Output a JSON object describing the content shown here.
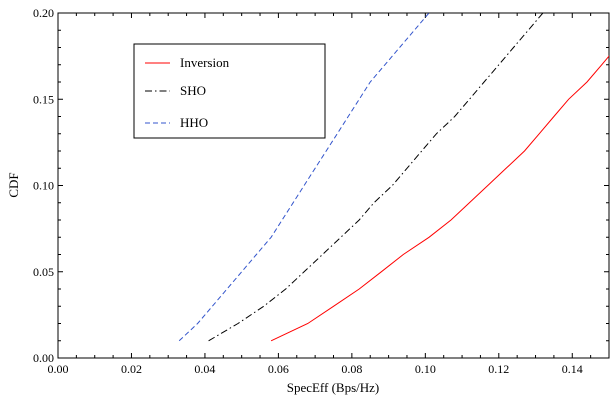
{
  "chart_data": {
    "type": "line",
    "title": "",
    "xlabel": "SpecEff (Bps/Hz)",
    "ylabel": "CDF",
    "xlim": [
      0,
      0.15
    ],
    "ylim": [
      0,
      0.2
    ],
    "xticks": [
      "0.00",
      "0.02",
      "0.04",
      "0.06",
      "0.08",
      "0.10",
      "0.12",
      "0.14"
    ],
    "yticks": [
      "0.00",
      "0.05",
      "0.10",
      "0.15",
      "0.20"
    ],
    "grid": false,
    "legend_position": "top-left",
    "series": [
      {
        "name": "Inversion",
        "color": "#ff0000",
        "dash": "solid",
        "points": [
          [
            0.058,
            0.01
          ],
          [
            0.068,
            0.02
          ],
          [
            0.075,
            0.03
          ],
          [
            0.082,
            0.04
          ],
          [
            0.088,
            0.05
          ],
          [
            0.094,
            0.06
          ],
          [
            0.101,
            0.07
          ],
          [
            0.107,
            0.08
          ],
          [
            0.112,
            0.09
          ],
          [
            0.117,
            0.1
          ],
          [
            0.122,
            0.11
          ],
          [
            0.127,
            0.12
          ],
          [
            0.131,
            0.13
          ],
          [
            0.135,
            0.14
          ],
          [
            0.139,
            0.15
          ],
          [
            0.144,
            0.16
          ],
          [
            0.148,
            0.17
          ],
          [
            0.152,
            0.18
          ],
          [
            0.155,
            0.19
          ]
        ]
      },
      {
        "name": "SHO",
        "color": "#000000",
        "dash": "dashdot",
        "points": [
          [
            0.041,
            0.01
          ],
          [
            0.049,
            0.02
          ],
          [
            0.056,
            0.03
          ],
          [
            0.062,
            0.04
          ],
          [
            0.067,
            0.05
          ],
          [
            0.072,
            0.06
          ],
          [
            0.077,
            0.07
          ],
          [
            0.082,
            0.08
          ],
          [
            0.086,
            0.09
          ],
          [
            0.091,
            0.1
          ],
          [
            0.095,
            0.11
          ],
          [
            0.099,
            0.12
          ],
          [
            0.103,
            0.13
          ],
          [
            0.108,
            0.14
          ],
          [
            0.112,
            0.15
          ],
          [
            0.116,
            0.16
          ],
          [
            0.12,
            0.17
          ],
          [
            0.124,
            0.18
          ],
          [
            0.128,
            0.19
          ],
          [
            0.132,
            0.2
          ]
        ]
      },
      {
        "name": "HHO",
        "color": "#3355cc",
        "dash": "dashed",
        "points": [
          [
            0.033,
            0.01
          ],
          [
            0.038,
            0.02
          ],
          [
            0.042,
            0.03
          ],
          [
            0.046,
            0.04
          ],
          [
            0.05,
            0.05
          ],
          [
            0.054,
            0.06
          ],
          [
            0.058,
            0.07
          ],
          [
            0.061,
            0.08
          ],
          [
            0.064,
            0.09
          ],
          [
            0.067,
            0.1
          ],
          [
            0.07,
            0.11
          ],
          [
            0.073,
            0.12
          ],
          [
            0.076,
            0.13
          ],
          [
            0.079,
            0.14
          ],
          [
            0.082,
            0.15
          ],
          [
            0.085,
            0.16
          ],
          [
            0.089,
            0.17
          ],
          [
            0.093,
            0.18
          ],
          [
            0.097,
            0.19
          ],
          [
            0.101,
            0.2
          ]
        ]
      }
    ]
  }
}
